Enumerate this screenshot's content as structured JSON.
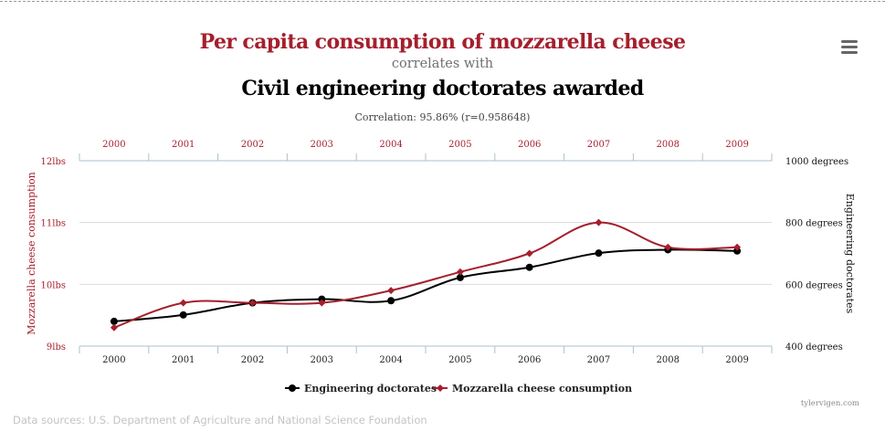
{
  "title": "Per capita consumption of mozzarella cheese",
  "subtitle": "correlates with",
  "title2": "Civil engineering doctorates awarded",
  "correlation": "Correlation: 95.86% (r=0.958648)",
  "sources": "Data sources: U.S. Department of Agriculture and National Science Foundation",
  "credit": "tylervigen.com",
  "menu_icon": "hamburger-menu-icon",
  "colors": {
    "cheese": "#a51f2d",
    "doctorates": "#000000",
    "grid": "#d5dde2",
    "axis": "#a9c3cd"
  },
  "chart_data": {
    "type": "line",
    "x": [
      "2000",
      "2001",
      "2002",
      "2003",
      "2004",
      "2005",
      "2006",
      "2007",
      "2008",
      "2009"
    ],
    "left_axis": {
      "label": "Mozzarella cheese consumption",
      "range": [
        9,
        12
      ],
      "ticks": [
        {
          "value": 9,
          "label": "9lbs"
        },
        {
          "value": 10,
          "label": "10lbs"
        },
        {
          "value": 11,
          "label": "11lbs"
        },
        {
          "value": 12,
          "label": "12lbs"
        }
      ]
    },
    "right_axis": {
      "label": "Engineering doctorates",
      "range": [
        400,
        1000
      ],
      "ticks": [
        {
          "value": 400,
          "label": "400 degrees"
        },
        {
          "value": 600,
          "label": "600 degrees"
        },
        {
          "value": 800,
          "label": "800 degrees"
        },
        {
          "value": 1000,
          "label": "1000 degrees"
        }
      ]
    },
    "series": [
      {
        "name": "Engineering doctorates",
        "axis": "right",
        "marker": "circle",
        "color": "#000000",
        "values": [
          480,
          501,
          540,
          552,
          547,
          622,
          655,
          701,
          712,
          708
        ]
      },
      {
        "name": "Mozzarella cheese consumption",
        "axis": "left",
        "marker": "diamond",
        "color": "#a51f2d",
        "values": [
          9.3,
          9.7,
          9.7,
          9.7,
          9.9,
          10.2,
          10.5,
          11.0,
          10.6,
          10.6
        ]
      }
    ],
    "grid": true,
    "legend_position": "bottom-center"
  }
}
